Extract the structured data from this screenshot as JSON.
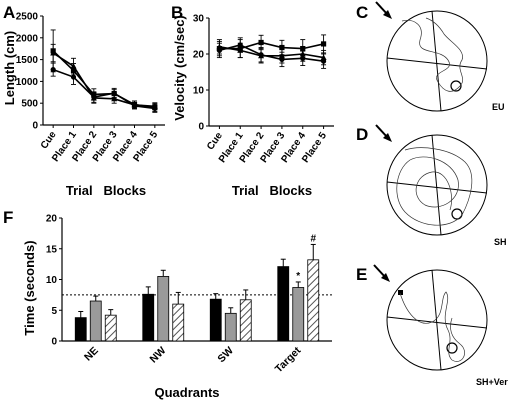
{
  "figure": {
    "panel_labels": [
      "A",
      "B",
      "C",
      "D",
      "E",
      "F"
    ],
    "track_annotations": [
      "EU",
      "SH",
      "SH+Ver"
    ]
  },
  "chart_data": [
    {
      "panel": "A",
      "type": "line",
      "ylabel": "Length (cm)",
      "xlabel": "Trial   Blocks",
      "categories": [
        "Cue",
        "Place 1",
        "Place 2",
        "Place 3",
        "Place 4",
        "Place 5"
      ],
      "ylim": [
        0,
        2500
      ],
      "yticks": [
        0,
        500,
        1000,
        1500,
        2000,
        2500
      ],
      "series": [
        {
          "marker": "square",
          "values": [
            1700,
            1250,
            700,
            720,
            470,
            400
          ],
          "errors": [
            480,
            160,
            130,
            90,
            80,
            90
          ]
        },
        {
          "marker": "triangle",
          "values": [
            1650,
            1350,
            620,
            600,
            460,
            430
          ],
          "errors": [
            200,
            180,
            120,
            100,
            90,
            80
          ]
        },
        {
          "marker": "circle",
          "values": [
            1270,
            1100,
            640,
            730,
            440,
            380
          ],
          "errors": [
            150,
            170,
            120,
            110,
            70,
            90
          ]
        }
      ]
    },
    {
      "panel": "B",
      "type": "line",
      "ylabel": "Velocity (cm/sec)",
      "xlabel": "Trial   Blocks",
      "categories": [
        "Cue",
        "Place 1",
        "Place 2",
        "Place 3",
        "Place 4",
        "Place 5"
      ],
      "ylim": [
        0,
        30
      ],
      "yticks": [
        0,
        10,
        20,
        30
      ],
      "series": [
        {
          "marker": "square",
          "values": [
            21.5,
            21.5,
            23.2,
            21.8,
            21.5,
            22.8
          ],
          "errors": [
            2.0,
            2.5,
            2.0,
            2.0,
            2.5,
            2.5
          ]
        },
        {
          "marker": "triangle",
          "values": [
            22.0,
            21.0,
            19.5,
            19.5,
            20.0,
            19.0
          ],
          "errors": [
            2.0,
            2.0,
            2.0,
            2.0,
            2.0,
            2.0
          ]
        },
        {
          "marker": "circle",
          "values": [
            21.0,
            22.5,
            19.8,
            18.5,
            18.8,
            18.0
          ],
          "errors": [
            2.0,
            2.0,
            2.0,
            2.0,
            2.0,
            2.0
          ]
        }
      ]
    },
    {
      "panel": "F",
      "type": "bar",
      "ylabel": "Time (seconds)",
      "xlabel": "Quadrants",
      "categories": [
        "NE",
        "NW",
        "SW",
        "Target"
      ],
      "ylim": [
        0,
        20
      ],
      "yticks": [
        0,
        5,
        10,
        15,
        20
      ],
      "reference_line": 7.5,
      "series": [
        {
          "fill": "black",
          "values": [
            3.8,
            7.6,
            6.8,
            12.1
          ],
          "errors": [
            1.0,
            1.2,
            0.9,
            1.2
          ]
        },
        {
          "fill": "gray",
          "values": [
            6.5,
            10.5,
            4.5,
            8.7
          ],
          "errors": [
            0.8,
            1.0,
            0.9,
            0.9
          ]
        },
        {
          "fill": "hatched",
          "values": [
            4.2,
            6.0,
            6.7,
            13.2
          ],
          "errors": [
            0.9,
            1.9,
            1.6,
            2.5
          ]
        }
      ],
      "significance_marks": [
        {
          "category": "Target",
          "series_index": 1,
          "mark": "*"
        },
        {
          "category": "Target",
          "series_index": 2,
          "mark": "#"
        }
      ]
    }
  ]
}
